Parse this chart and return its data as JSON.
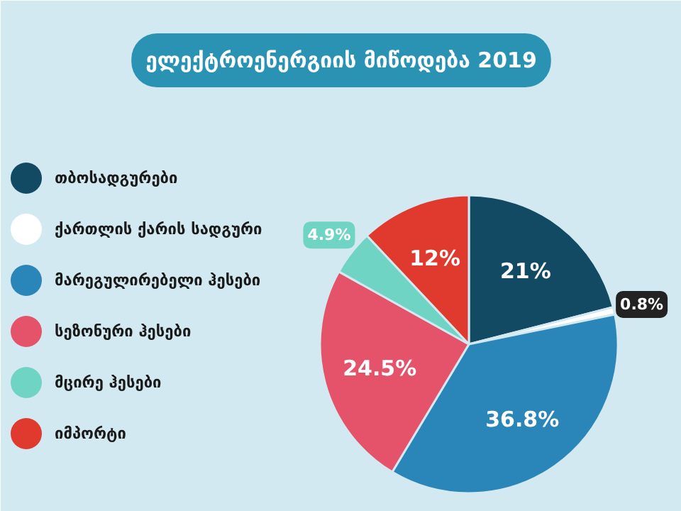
{
  "chart_data": {
    "type": "pie",
    "title": "ელექტროენერგიის მიწოდება 2019",
    "categories": [
      "თბოსადგურები",
      "ქართლის ქარის სადგური",
      "მარეგულირებელი ჰესები",
      "სეზონური ჰესები",
      "მცირე ჰესები",
      "იმპორტი"
    ],
    "values": [
      21,
      0.8,
      36.8,
      24.5,
      4.9,
      12
    ],
    "colors": [
      "#134a63",
      "#ffffff",
      "#2a86b8",
      "#e5536b",
      "#6fd4c4",
      "#e03a2e"
    ],
    "value_labels": [
      "21%",
      "0.8%",
      "36.8%",
      "24.5%",
      "4.9%",
      "12%"
    ],
    "legend": "left"
  }
}
